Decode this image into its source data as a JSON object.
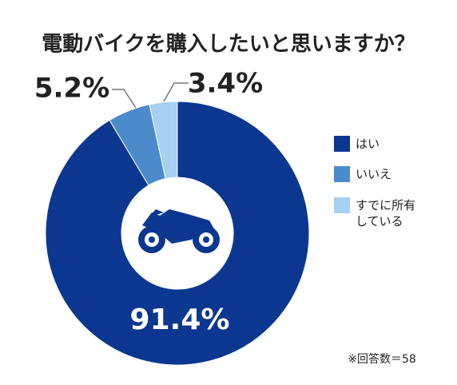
{
  "chart_data": {
    "type": "donut",
    "title": "電動バイクを購入したいと思いますか？",
    "categories": [
      "はい",
      "いいえ",
      "すでに所有している"
    ],
    "values": [
      91.4,
      5.2,
      3.4
    ],
    "value_labels": [
      "91.4%",
      "5.2%",
      "3.4%"
    ],
    "colors": [
      "#0b3790",
      "#4b8bcc",
      "#a7d0f1"
    ],
    "note": "※回答数＝58"
  }
}
